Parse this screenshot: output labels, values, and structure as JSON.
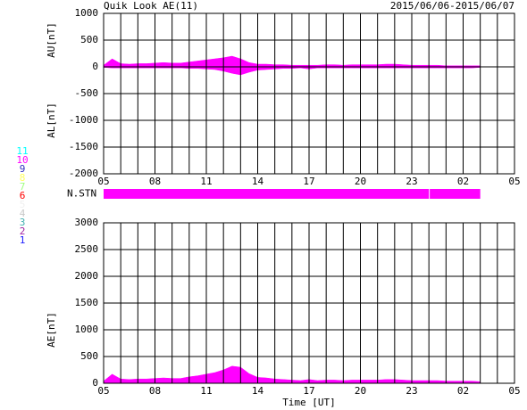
{
  "title": "Quik Look AE(11)",
  "date_range": "2015/06/06-2015/06/07",
  "station_legend": [
    {
      "label": "11",
      "color": "#00ffff"
    },
    {
      "label": "10",
      "color": "#ff00ff"
    },
    {
      "label": "9",
      "color": "#3030c0"
    },
    {
      "label": "8",
      "color": "#ffff60"
    },
    {
      "label": "7",
      "color": "#a0ff80"
    },
    {
      "label": "6",
      "color": "#ff0000"
    },
    {
      "label": "5",
      "color": "#f0f0f0"
    },
    {
      "label": "4",
      "color": "#c8c8c8"
    },
    {
      "label": "3",
      "color": "#40b0b0"
    },
    {
      "label": "2",
      "color": "#a020a0"
    },
    {
      "label": "1",
      "color": "#2020ff"
    }
  ],
  "chart_data": [
    {
      "type": "area",
      "color": "#ff00ff",
      "grid": true,
      "x": [
        5,
        5.5,
        6,
        6.5,
        7,
        7.5,
        8,
        8.5,
        9,
        9.5,
        10,
        10.5,
        11,
        11.5,
        12,
        12.5,
        13,
        13.5,
        14,
        14.5,
        15,
        15.5,
        16,
        16.5,
        17,
        17.5,
        18,
        18.5,
        19,
        19.5,
        20,
        20.5,
        21,
        21.5,
        22,
        22.5,
        23,
        23.5,
        24,
        24.5,
        25,
        25.5,
        26,
        26.5,
        27
      ],
      "series": [
        {
          "name": "AU[nT]",
          "values": [
            30,
            150,
            60,
            50,
            60,
            60,
            70,
            80,
            70,
            70,
            90,
            110,
            130,
            150,
            170,
            200,
            150,
            80,
            50,
            50,
            40,
            40,
            30,
            30,
            30,
            30,
            40,
            40,
            30,
            40,
            40,
            40,
            40,
            50,
            50,
            40,
            30,
            30,
            30,
            30,
            20,
            20,
            20,
            20,
            20
          ]
        },
        {
          "name": "AL[nT]",
          "values": [
            -10,
            -20,
            -20,
            -20,
            -20,
            -20,
            -20,
            -20,
            -20,
            -20,
            -30,
            -30,
            -40,
            -50,
            -80,
            -120,
            -150,
            -100,
            -60,
            -50,
            -40,
            -30,
            -30,
            -20,
            -40,
            -20,
            -20,
            -20,
            -20,
            -20,
            -20,
            -20,
            -20,
            -20,
            -20,
            -20,
            -20,
            -20,
            -20,
            -20,
            -20,
            -20,
            -20,
            -20,
            -10
          ]
        }
      ],
      "xlim": [
        5,
        29
      ],
      "xticks": [
        {
          "value": 5,
          "label": "05"
        },
        {
          "value": 8,
          "label": "08"
        },
        11,
        14,
        17,
        20,
        23,
        {
          "value": 26,
          "label": "02"
        },
        {
          "value": 29,
          "label": "05"
        }
      ],
      "xgrid": [
        5,
        6,
        7,
        8,
        9,
        10,
        11,
        12,
        13,
        14,
        15,
        16,
        17,
        18,
        19,
        20,
        21,
        22,
        23,
        24,
        25,
        26,
        27,
        28,
        29
      ],
      "ylim": [
        -2000,
        1000
      ],
      "yticks": [
        -2000,
        -1500,
        -1000,
        -500,
        0,
        500,
        1000
      ]
    },
    {
      "type": "timebar",
      "label": "N.STN",
      "xlim": [
        5,
        29
      ],
      "segments": [
        {
          "start": 5,
          "end": 24,
          "value": 10
        },
        {
          "start": 24.05,
          "end": 27,
          "value": 10
        }
      ]
    },
    {
      "type": "area",
      "color": "#ff00ff",
      "grid": true,
      "xlabel": "Time [UT]",
      "x": [
        5,
        5.5,
        6,
        6.5,
        7,
        7.5,
        8,
        8.5,
        9,
        9.5,
        10,
        10.5,
        11,
        11.5,
        12,
        12.5,
        13,
        13.5,
        14,
        14.5,
        15,
        15.5,
        16,
        16.5,
        17,
        17.5,
        18,
        18.5,
        19,
        19.5,
        20,
        20.5,
        21,
        21.5,
        22,
        22.5,
        23,
        23.5,
        24,
        24.5,
        25,
        25.5,
        26,
        26.5,
        27
      ],
      "series": [
        {
          "name": "AE[nT]",
          "values": [
            40,
            170,
            80,
            70,
            80,
            80,
            90,
            100,
            90,
            90,
            120,
            140,
            170,
            200,
            250,
            320,
            300,
            180,
            110,
            100,
            80,
            70,
            60,
            50,
            70,
            50,
            60,
            60,
            50,
            60,
            60,
            60,
            60,
            70,
            70,
            60,
            50,
            50,
            50,
            50,
            40,
            40,
            40,
            40,
            30
          ]
        }
      ],
      "xlim": [
        5,
        29
      ],
      "xticks": [
        {
          "value": 5,
          "label": "05"
        },
        {
          "value": 8,
          "label": "08"
        },
        11,
        14,
        17,
        20,
        23,
        {
          "value": 26,
          "label": "02"
        },
        {
          "value": 29,
          "label": "05"
        }
      ],
      "xgrid": [
        5,
        6,
        7,
        8,
        9,
        10,
        11,
        12,
        13,
        14,
        15,
        16,
        17,
        18,
        19,
        20,
        21,
        22,
        23,
        24,
        25,
        26,
        27,
        28,
        29
      ],
      "ylim": [
        0,
        3000
      ],
      "yticks": [
        0,
        500,
        1000,
        1500,
        2000,
        2500,
        3000
      ]
    }
  ]
}
